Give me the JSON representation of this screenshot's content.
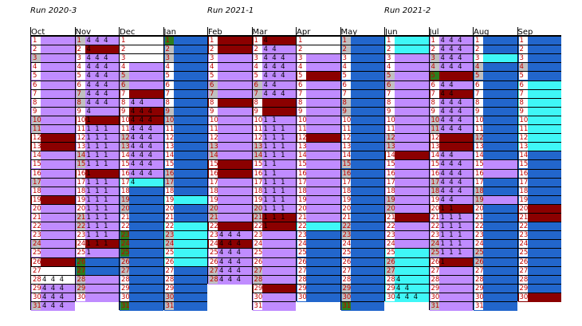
{
  "colors": {
    "lavender": "#c08cff",
    "blue": "#2266cc",
    "cyan": "#3ff7f7",
    "maroon": "#8b0000",
    "white": "#ffffff",
    "gray": "#c0c0c0",
    "green": "#2e7d1e"
  },
  "chart_data": {
    "type": "heatmap",
    "runs": [
      {
        "label": "Run 2020-3",
        "start_month": 0
      },
      {
        "label": "Run 2021-1",
        "start_month": 4
      },
      {
        "label": "Run 2021-2",
        "start_month": 8
      }
    ],
    "months": [
      {
        "name": "Oct",
        "days": 31,
        "base": "L",
        "shaded": [
          3,
          10,
          11,
          17,
          24,
          31
        ],
        "blocks": [
          [
            12,
            13,
            "M"
          ],
          [
            13,
            14,
            "M"
          ],
          [
            19,
            20,
            "M"
          ],
          [
            26,
            27,
            "M"
          ],
          [
            27,
            29,
            "W"
          ]
        ],
        "text": {
          "28": "4 4 4",
          "29": "4 4 4",
          "30": "4 4 4",
          "31": "4 4 4"
        }
      },
      {
        "name": "Nov",
        "days": 30,
        "base": "L",
        "shaded": [
          1,
          7,
          8,
          14,
          15,
          21,
          22,
          28,
          29
        ],
        "blocks": [
          [
            2,
            3,
            "M"
          ],
          [
            10,
            11,
            "M"
          ],
          [
            16,
            17,
            "M"
          ],
          [
            24,
            25,
            "M"
          ],
          [
            26,
            28,
            "B"
          ]
        ],
        "text": {
          "1": "4 4 4",
          "2": "4",
          "3": "4 4 4",
          "4": "4 4 4",
          "5": "4 4 4",
          "6": "4 4 4",
          "7": "4 4 4",
          "8": "4 4 4",
          "9": "4",
          "10": "1",
          "11": "1 1 1",
          "12": "1 1 1",
          "13": "1 1 1",
          "14": "1 1 1",
          "15": "1 1 1",
          "16": "1",
          "17": "1 1 1",
          "18": "1 1 1",
          "19": "1 1 1",
          "20": "1 1 1",
          "21": "1 1 1",
          "22": "1 1 1",
          "23": "1 1 1",
          "24": "1 1 1",
          "25": "1"
        },
        "green": [
          26,
          27
        ]
      },
      {
        "name": "Dec",
        "days": 31,
        "base": "L",
        "shaded": [
          5,
          6,
          12,
          13,
          19,
          20,
          26,
          27
        ],
        "blocks": [
          [
            1,
            4,
            "W"
          ],
          [
            7,
            8,
            "M"
          ],
          [
            9,
            11,
            "M"
          ],
          [
            17,
            18,
            "C"
          ],
          [
            18,
            32,
            "B"
          ]
        ],
        "text": {
          "8": "4 4",
          "9": "4 4 4",
          "10": "4 4 4",
          "11": "4 4 4",
          "12": "4 4 4",
          "13": "4 4 4",
          "14": "4 4 4",
          "15": "4 4 4",
          "16": "4 4 4",
          "17": "4"
        },
        "green": [
          23,
          24,
          25,
          31
        ]
      },
      {
        "name": "Jan",
        "days": 31,
        "base": "B",
        "shaded": [
          2,
          3,
          9,
          10,
          16,
          17,
          23,
          24,
          30,
          31
        ],
        "blocks": [
          [
            19,
            20,
            "C"
          ],
          [
            22,
            26,
            "C"
          ],
          [
            26,
            27,
            "C"
          ]
        ],
        "text": {},
        "green": [
          1
        ]
      },
      {
        "name": "Feb",
        "days": 28,
        "base": "L",
        "shaded": [
          6,
          7,
          13,
          14,
          20,
          21,
          27,
          28
        ],
        "blocks": [
          [
            1,
            2,
            "M"
          ],
          [
            2,
            3,
            "M"
          ],
          [
            8,
            9,
            "M"
          ],
          [
            15,
            16,
            "M"
          ],
          [
            16,
            17,
            "M"
          ],
          [
            22,
            23,
            "M"
          ],
          [
            24,
            25,
            "M"
          ]
        ],
        "text": {
          "23": "4 4 4",
          "24": "4 4 4",
          "25": "4 4 4",
          "26": "4 4 4",
          "27": "4 4 4",
          "28": "4 4 4"
        }
      },
      {
        "name": "Mar",
        "days": 31,
        "base": "L",
        "shaded": [
          6,
          7,
          13,
          14,
          20,
          21,
          27,
          28
        ],
        "blocks": [
          [
            1,
            2,
            "M"
          ],
          [
            8,
            10,
            "M"
          ],
          [
            21,
            23,
            "M"
          ],
          [
            29,
            30,
            "M"
          ]
        ],
        "text": {
          "1": "4",
          "2": "4 4",
          "3": "4 4 4",
          "4": "4 4 4",
          "5": "4 4 4",
          "6": "4 4",
          "7": "4 4 4",
          "10": "1 1",
          "11": "1 1 1",
          "12": "1 1 1",
          "13": "1 1 1",
          "14": "1 1 1",
          "15": "1 1",
          "16": "1 1",
          "17": "1 1 1",
          "18": "1 1 1",
          "19": "1 1 1",
          "20": "1 1 1",
          "21": "1 1 1",
          "22": "1"
        }
      },
      {
        "name": "Apr",
        "days": 30,
        "base": "L",
        "shaded": [],
        "blocks": [
          [
            1,
            3,
            "W"
          ],
          [
            5,
            6,
            "M"
          ],
          [
            12,
            13,
            "M"
          ],
          [
            22,
            23,
            "C"
          ],
          [
            23,
            31,
            "B"
          ]
        ],
        "text": {}
      },
      {
        "name": "May",
        "days": 31,
        "base": "B",
        "shaded": [
          1,
          2,
          8,
          9,
          15,
          16,
          22,
          23,
          29,
          30
        ],
        "blocks": [],
        "text": {},
        "green": [
          31
        ]
      },
      {
        "name": "Jun",
        "days": 30,
        "base": "L",
        "shaded": [
          5,
          6,
          12,
          13,
          19,
          20,
          26,
          27
        ],
        "blocks": [
          [
            1,
            2,
            "C"
          ],
          [
            2,
            3,
            "C"
          ],
          [
            14,
            15,
            "M"
          ],
          [
            21,
            22,
            "M"
          ],
          [
            25,
            26,
            "C"
          ],
          [
            26,
            31,
            "C"
          ]
        ],
        "text": {
          "28": "4",
          "29": "4 4",
          "30": "4 4 4"
        }
      },
      {
        "name": "Jul",
        "days": 31,
        "base": "L",
        "shaded": [
          3,
          4,
          10,
          11,
          17,
          18,
          24,
          25,
          31
        ],
        "blocks": [
          [
            5,
            6,
            "M"
          ],
          [
            7,
            8,
            "M"
          ],
          [
            12,
            14,
            "M"
          ],
          [
            20,
            21,
            "M"
          ],
          [
            26,
            27,
            "M"
          ]
        ],
        "text": {
          "1": "4 4 4",
          "2": "4 4 4",
          "3": "4 4 4",
          "4": "4 4 4",
          "6": "4 4",
          "7": "4 4",
          "8": "4 4 4",
          "9": "4 4 4",
          "10": "4 4 4",
          "11": "4 4 4",
          "14": "4 4",
          "15": "4 4 4",
          "16": "4 4 4",
          "17": "4 4 4",
          "18": "4 4 4",
          "19": "4 4",
          "20": "1 1",
          "21": "1 1 1",
          "22": "1 1 1",
          "23": "1 1 1",
          "24": "1 1 1",
          "25": "1 1 1",
          "26": "1"
        },
        "green": [
          5
        ]
      },
      {
        "name": "Aug",
        "days": 31,
        "base": "L",
        "shaded": [
          4,
          5,
          12,
          18,
          19,
          25,
          26
        ],
        "blocks": [
          [
            1,
            3,
            "B"
          ],
          [
            3,
            4,
            "C"
          ],
          [
            4,
            12,
            "B"
          ],
          [
            12,
            15,
            "B"
          ],
          [
            17,
            19,
            "B"
          ],
          [
            20,
            32,
            "B"
          ]
        ],
        "text": {}
      },
      {
        "name": "Sep",
        "days": 30,
        "base": "B",
        "shaded": [
          4
        ],
        "blocks": [
          [
            1,
            6,
            "B"
          ],
          [
            6,
            11,
            "C"
          ],
          [
            11,
            13,
            "C"
          ],
          [
            13,
            14,
            "C"
          ],
          [
            20,
            21,
            "M"
          ],
          [
            21,
            22,
            "M"
          ],
          [
            30,
            31,
            "M"
          ]
        ],
        "text": {}
      }
    ]
  }
}
